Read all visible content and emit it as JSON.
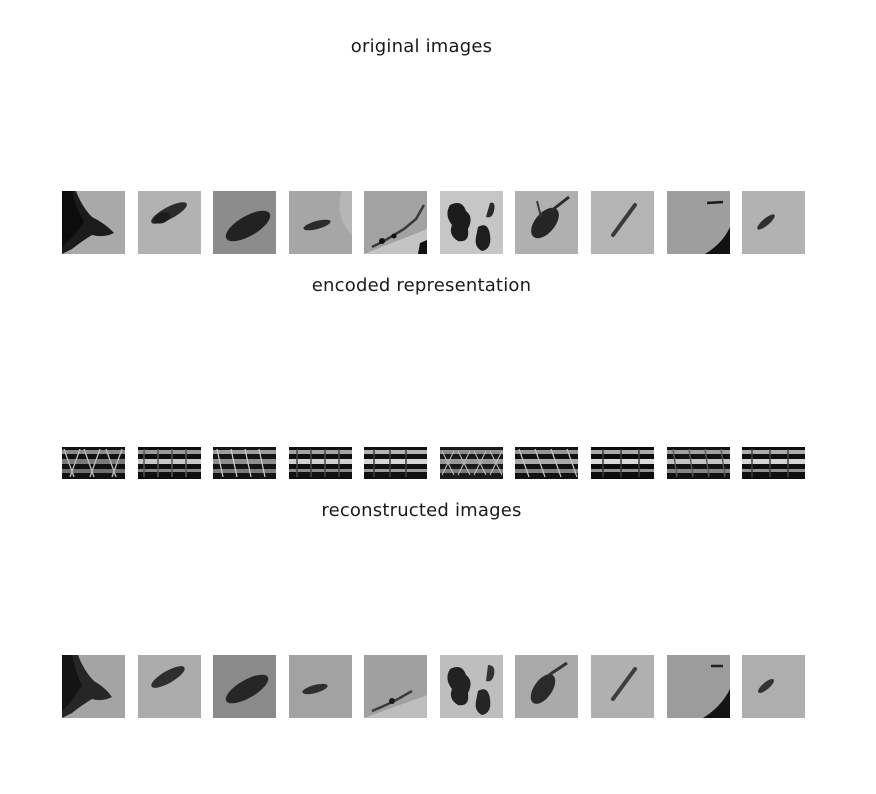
{
  "titles": {
    "original": "original images",
    "encoded": "encoded representation",
    "reconstructed": "reconstructed images"
  },
  "sample_count": 10,
  "colors": {
    "background": "#ffffff",
    "patch_gray": "#a7a7a7",
    "blob_dark": "#222222"
  }
}
